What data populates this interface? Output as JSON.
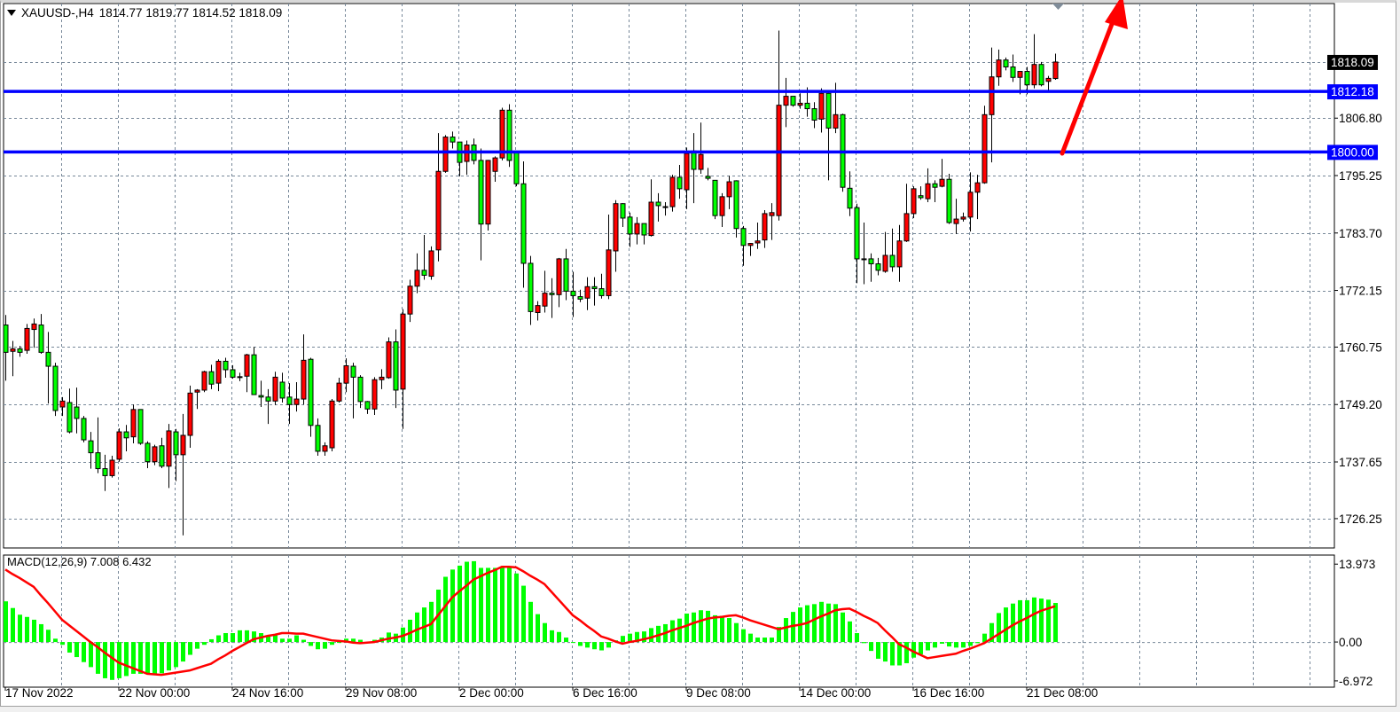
{
  "header": {
    "symbol": "XAUUSD-,H4",
    "ohlc_readout": "1814.77 1819.77 1814.52 1818.09",
    "menu_icon": "triangle-down-icon"
  },
  "colors": {
    "bull_candle": "#ff0000",
    "bear_candle": "#00ff00",
    "level_line": "#0000ff",
    "bid_label_bg": "#000000",
    "macd_histogram": "#00ff00",
    "macd_signal": "#ff0000",
    "arrow": "#ff0000",
    "grid": "#778899"
  },
  "chart_data": {
    "type": "candlestick",
    "symbol": "XAUUSD-",
    "timeframe": "H4",
    "grid": true,
    "ylim": [
      1720.35,
      1829.85
    ],
    "y_tick_labels": [
      "1806.80",
      "1795.25",
      "1783.70",
      "1772.15",
      "1760.75",
      "1749.20",
      "1737.65",
      "1726.25"
    ],
    "x_tick_labels": [
      "17 Nov 2022",
      "22 Nov 00:00",
      "24 Nov 16:00",
      "29 Nov 08:00",
      "2 Dec 00:00",
      "6 Dec 16:00",
      "9 Dec 08:00",
      "14 Dec 00:00",
      "16 Dec 16:00",
      "21 Dec 08:00"
    ],
    "bid": {
      "price": 1818.09,
      "label": "1818.09"
    },
    "horizontal_lines": [
      {
        "price": 1812.18,
        "label": "1812.18"
      },
      {
        "price": 1800.0,
        "label": "1800.00"
      }
    ],
    "annotation": {
      "type": "arrow",
      "direction": "up",
      "color": "#ff0000"
    },
    "candles_ohlc": [
      [
        1765.2,
        1767.2,
        1754.0,
        1759.7
      ],
      [
        1759.9,
        1762.0,
        1754.9,
        1760.4
      ],
      [
        1760.4,
        1761.0,
        1758.8,
        1759.7
      ],
      [
        1760.1,
        1765.4,
        1759.4,
        1764.5
      ],
      [
        1764.3,
        1766.5,
        1760.6,
        1765.4
      ],
      [
        1765.2,
        1767.4,
        1759.4,
        1759.7
      ],
      [
        1759.7,
        1763.8,
        1749.4,
        1756.9
      ],
      [
        1756.9,
        1757.6,
        1746.9,
        1748.0
      ],
      [
        1748.7,
        1750.7,
        1746.9,
        1749.9
      ],
      [
        1749.6,
        1752.4,
        1743.4,
        1743.7
      ],
      [
        1748.7,
        1752.6,
        1743.4,
        1746.4
      ],
      [
        1746.4,
        1746.9,
        1741.6,
        1742.1
      ],
      [
        1741.9,
        1743.7,
        1736.3,
        1739.5
      ],
      [
        1739.5,
        1746.6,
        1735.4,
        1736.3
      ],
      [
        1736.3,
        1739.1,
        1731.8,
        1734.9
      ],
      [
        1734.9,
        1738.9,
        1734.5,
        1738.0
      ],
      [
        1738.2,
        1744.4,
        1737.7,
        1743.7
      ],
      [
        1743.7,
        1745.1,
        1739.8,
        1742.5
      ],
      [
        1742.7,
        1749.2,
        1741.4,
        1748.2
      ],
      [
        1748.2,
        1748.2,
        1741.1,
        1741.4
      ],
      [
        1741.4,
        1741.8,
        1736.4,
        1737.7
      ],
      [
        1737.7,
        1741.1,
        1737.0,
        1740.7
      ],
      [
        1740.9,
        1742.5,
        1736.4,
        1736.8
      ],
      [
        1736.8,
        1745.3,
        1732.4,
        1743.9
      ],
      [
        1743.7,
        1744.3,
        1733.8,
        1739.1
      ],
      [
        1739.1,
        1747.3,
        1722.9,
        1743.0
      ],
      [
        1743.0,
        1753.0,
        1740.5,
        1751.5
      ],
      [
        1751.7,
        1752.3,
        1748.3,
        1752.1
      ],
      [
        1752.1,
        1756.0,
        1751.7,
        1755.8
      ],
      [
        1755.8,
        1757.2,
        1752.3,
        1753.3
      ],
      [
        1753.5,
        1758.3,
        1751.9,
        1757.9
      ],
      [
        1757.9,
        1758.6,
        1754.6,
        1756.2
      ],
      [
        1756.2,
        1757.1,
        1754.4,
        1754.7
      ],
      [
        1754.7,
        1755.6,
        1753.9,
        1754.8
      ],
      [
        1754.9,
        1759.4,
        1751.7,
        1759.2
      ],
      [
        1759.2,
        1760.8,
        1751.2,
        1751.2
      ],
      [
        1751.0,
        1754.0,
        1748.7,
        1750.7
      ],
      [
        1750.7,
        1752.3,
        1745.3,
        1749.9
      ],
      [
        1749.9,
        1755.8,
        1749.1,
        1754.7
      ],
      [
        1753.7,
        1755.6,
        1749.6,
        1750.5
      ],
      [
        1750.7,
        1753.5,
        1745.3,
        1749.2
      ],
      [
        1749.2,
        1753.7,
        1747.8,
        1750.3
      ],
      [
        1750.3,
        1763.3,
        1749.2,
        1758.1
      ],
      [
        1758.3,
        1758.6,
        1742.7,
        1745.0
      ],
      [
        1745.0,
        1746.4,
        1738.9,
        1739.8
      ],
      [
        1739.8,
        1741.6,
        1738.9,
        1740.9
      ],
      [
        1740.5,
        1750.3,
        1739.8,
        1749.9
      ],
      [
        1749.9,
        1754.6,
        1749.6,
        1753.5
      ],
      [
        1753.5,
        1758.5,
        1751.7,
        1757.0
      ],
      [
        1756.9,
        1757.6,
        1746.4,
        1754.7
      ],
      [
        1754.7,
        1755.1,
        1748.5,
        1749.8
      ],
      [
        1749.8,
        1749.9,
        1747.3,
        1748.3
      ],
      [
        1748.3,
        1754.7,
        1747.1,
        1754.2
      ],
      [
        1754.2,
        1756.3,
        1752.3,
        1754.7
      ],
      [
        1754.6,
        1762.7,
        1754.4,
        1761.8
      ],
      [
        1761.8,
        1764.3,
        1748.5,
        1752.1
      ],
      [
        1752.3,
        1768.4,
        1744.3,
        1767.4
      ],
      [
        1767.4,
        1774.3,
        1765.8,
        1773.0
      ],
      [
        1773.0,
        1779.6,
        1771.6,
        1776.2
      ],
      [
        1776.2,
        1783.3,
        1774.3,
        1775.2
      ],
      [
        1775.0,
        1781.0,
        1774.3,
        1780.1
      ],
      [
        1780.3,
        1803.8,
        1778.0,
        1796.1
      ],
      [
        1796.1,
        1803.4,
        1795.8,
        1803.0
      ],
      [
        1803.0,
        1804.1,
        1800.7,
        1802.0
      ],
      [
        1802.0,
        1802.0,
        1795.1,
        1797.9
      ],
      [
        1798.1,
        1802.3,
        1795.4,
        1801.4
      ],
      [
        1801.4,
        1802.7,
        1797.5,
        1798.3
      ],
      [
        1798.3,
        1800.7,
        1778.2,
        1785.5
      ],
      [
        1785.5,
        1798.4,
        1784.2,
        1798.3
      ],
      [
        1796.1,
        1799.1,
        1794.0,
        1798.8
      ],
      [
        1798.8,
        1808.9,
        1798.3,
        1808.4
      ],
      [
        1808.4,
        1809.6,
        1797.0,
        1798.3
      ],
      [
        1799.9,
        1799.9,
        1793.1,
        1793.6
      ],
      [
        1793.6,
        1798.1,
        1772.7,
        1777.6
      ],
      [
        1777.6,
        1779.1,
        1765.2,
        1767.9
      ],
      [
        1767.7,
        1770.0,
        1766.1,
        1769.1
      ],
      [
        1769.0,
        1776.1,
        1767.7,
        1771.6
      ],
      [
        1771.6,
        1774.6,
        1766.6,
        1771.3
      ],
      [
        1771.3,
        1778.7,
        1768.8,
        1778.5
      ],
      [
        1778.5,
        1780.5,
        1770.2,
        1772.0
      ],
      [
        1772.0,
        1775.9,
        1766.8,
        1771.1
      ],
      [
        1770.9,
        1772.3,
        1769.8,
        1770.4
      ],
      [
        1770.6,
        1774.8,
        1768.2,
        1772.9
      ],
      [
        1772.9,
        1774.8,
        1769.1,
        1772.5
      ],
      [
        1772.5,
        1775.5,
        1770.5,
        1771.1
      ],
      [
        1771.1,
        1787.4,
        1770.4,
        1780.3
      ],
      [
        1780.1,
        1790.3,
        1775.9,
        1789.6
      ],
      [
        1789.6,
        1789.7,
        1784.9,
        1786.7
      ],
      [
        1786.9,
        1787.8,
        1780.9,
        1783.5
      ],
      [
        1783.5,
        1786.9,
        1781.4,
        1785.6
      ],
      [
        1785.6,
        1785.6,
        1781.4,
        1783.3
      ],
      [
        1783.2,
        1794.5,
        1783.0,
        1789.9
      ],
      [
        1789.9,
        1791.7,
        1786.0,
        1789.2
      ],
      [
        1789.0,
        1789.9,
        1787.2,
        1789.0
      ],
      [
        1789.0,
        1795.4,
        1788.0,
        1794.9
      ],
      [
        1794.9,
        1797.4,
        1790.6,
        1792.6
      ],
      [
        1792.4,
        1800.9,
        1788.5,
        1799.7
      ],
      [
        1800.2,
        1803.8,
        1789.7,
        1796.5
      ],
      [
        1796.5,
        1805.9,
        1795.6,
        1799.5
      ],
      [
        1795.1,
        1796.8,
        1794.3,
        1794.7
      ],
      [
        1794.3,
        1794.3,
        1786.5,
        1787.2
      ],
      [
        1787.2,
        1791.7,
        1784.9,
        1791.0
      ],
      [
        1791.0,
        1795.2,
        1788.5,
        1794.0
      ],
      [
        1794.2,
        1794.3,
        1782.8,
        1784.6
      ],
      [
        1784.6,
        1785.1,
        1777.1,
        1781.2
      ],
      [
        1781.2,
        1781.7,
        1779.1,
        1781.6
      ],
      [
        1781.7,
        1785.8,
        1780.5,
        1782.1
      ],
      [
        1782.3,
        1788.3,
        1780.7,
        1787.6
      ],
      [
        1787.2,
        1789.7,
        1782.3,
        1787.8
      ],
      [
        1787.2,
        1824.4,
        1786.2,
        1809.4
      ],
      [
        1809.4,
        1814.9,
        1805.0,
        1811.2
      ],
      [
        1811.2,
        1811.2,
        1809.1,
        1809.4
      ],
      [
        1809.4,
        1811.8,
        1808.7,
        1809.8
      ],
      [
        1809.8,
        1813.0,
        1807.1,
        1808.7
      ],
      [
        1808.7,
        1810.0,
        1804.8,
        1806.4
      ],
      [
        1806.6,
        1812.8,
        1803.9,
        1811.8
      ],
      [
        1811.8,
        1811.9,
        1794.3,
        1804.8
      ],
      [
        1804.8,
        1813.9,
        1803.8,
        1807.5
      ],
      [
        1807.5,
        1807.7,
        1792.0,
        1792.9
      ],
      [
        1792.7,
        1796.1,
        1787.1,
        1788.7
      ],
      [
        1788.8,
        1789.6,
        1773.6,
        1778.5
      ],
      [
        1778.5,
        1785.8,
        1773.4,
        1778.5
      ],
      [
        1778.5,
        1779.6,
        1773.9,
        1777.5
      ],
      [
        1777.5,
        1778.7,
        1775.2,
        1776.2
      ],
      [
        1776.0,
        1783.9,
        1775.7,
        1779.2
      ],
      [
        1779.2,
        1784.6,
        1775.9,
        1776.9
      ],
      [
        1776.9,
        1785.3,
        1773.9,
        1782.1
      ],
      [
        1782.1,
        1793.6,
        1781.9,
        1787.6
      ],
      [
        1787.6,
        1793.1,
        1786.7,
        1792.6
      ],
      [
        1791.2,
        1793.1,
        1790.4,
        1790.8
      ],
      [
        1790.6,
        1796.7,
        1789.9,
        1793.6
      ],
      [
        1793.6,
        1794.3,
        1789.9,
        1792.9
      ],
      [
        1793.1,
        1798.6,
        1792.9,
        1794.5
      ],
      [
        1794.5,
        1795.6,
        1785.5,
        1785.8
      ],
      [
        1785.6,
        1790.6,
        1783.5,
        1786.5
      ],
      [
        1786.5,
        1787.8,
        1786.0,
        1786.9
      ],
      [
        1786.9,
        1795.9,
        1784.0,
        1791.9
      ],
      [
        1791.9,
        1795.4,
        1786.5,
        1793.8
      ],
      [
        1793.8,
        1809.3,
        1793.6,
        1807.5
      ],
      [
        1807.5,
        1821.0,
        1797.9,
        1815.1
      ],
      [
        1815.1,
        1820.6,
        1813.3,
        1818.5
      ],
      [
        1818.5,
        1819.0,
        1816.4,
        1817.1
      ],
      [
        1817.1,
        1819.6,
        1814.1,
        1815.0
      ],
      [
        1815.0,
        1816.2,
        1811.6,
        1816.2
      ],
      [
        1816.2,
        1817.1,
        1811.6,
        1813.5
      ],
      [
        1813.5,
        1823.7,
        1812.8,
        1817.6
      ],
      [
        1817.6,
        1818.1,
        1813.2,
        1813.5
      ],
      [
        1814.2,
        1815.3,
        1812.3,
        1814.8
      ],
      [
        1814.77,
        1819.77,
        1814.52,
        1818.09
      ]
    ],
    "macd": {
      "label": "MACD(12,26,9) 7.008 6.432",
      "ylim": [
        -8.1,
        15.6
      ],
      "y_tick_labels": [
        "13.973",
        "0.00",
        "-6.972"
      ],
      "main": [
        7.3,
        6.1,
        4.9,
        4.5,
        4.0,
        3.2,
        2.2,
        0.6,
        -0.5,
        -1.9,
        -2.7,
        -3.6,
        -4.5,
        -5.7,
        -6.5,
        -6.8,
        -6.5,
        -6.1,
        -5.7,
        -5.7,
        -5.7,
        -5.7,
        -5.6,
        -5.1,
        -4.5,
        -3.5,
        -2.3,
        -1.2,
        -0.5,
        0.5,
        1.2,
        1.6,
        1.6,
        2.1,
        2.1,
        1.9,
        1.6,
        1.1,
        1.2,
        0.6,
        0.6,
        1.2,
        0.4,
        -0.7,
        -1.3,
        -1.2,
        -0.5,
        0,
        0.6,
        0.6,
        0.4,
        0,
        0.4,
        0.8,
        1.7,
        1.5,
        2.6,
        4.0,
        5.3,
        6.2,
        7.2,
        9.4,
        11.7,
        13.0,
        13.7,
        14.4,
        14.5,
        13.3,
        13.3,
        13.3,
        13.3,
        13.3,
        12.3,
        10.1,
        7.2,
        5.0,
        3.4,
        2.1,
        1.8,
        0.8,
        0,
        -0.7,
        -1.0,
        -1.3,
        -1.5,
        -1.0,
        0.3,
        1.1,
        1.5,
        1.8,
        1.9,
        2.5,
        2.9,
        3.2,
        3.9,
        4.2,
        5.1,
        5.3,
        5.7,
        5.6,
        4.8,
        4.7,
        4.3,
        3.4,
        2.3,
        1.5,
        0.8,
        0.8,
        0.8,
        2.7,
        4.3,
        5.4,
        6.2,
        6.6,
        6.8,
        7.2,
        6.9,
        6.8,
        5.3,
        3.7,
        1.6,
        -0.2,
        -1.6,
        -3.0,
        -3.5,
        -4.2,
        -4.2,
        -3.8,
        -2.8,
        -2.2,
        -1.5,
        -1.0,
        -0.3,
        -0.8,
        -1.0,
        -1.0,
        -0.7,
        -0.2,
        1.5,
        3.4,
        5.2,
        6.2,
        6.9,
        7.5,
        7.5,
        8.0,
        7.8,
        7.6,
        7.008
      ],
      "signal": [
        13.0,
        12.2,
        11.5,
        10.7,
        9.9,
        8.4,
        7.0,
        5.5,
        4.0,
        3.0,
        2.0,
        1.0,
        0,
        -0.9,
        -1.9,
        -2.8,
        -3.7,
        -4.2,
        -4.7,
        -5.2,
        -5.7,
        -5.8,
        -5.9,
        -5.7,
        -5.5,
        -5.3,
        -5.1,
        -4.7,
        -4.3,
        -3.9,
        -3.1,
        -2.4,
        -1.6,
        -0.9,
        -0.2,
        0.5,
        0.8,
        1.1,
        1.3,
        1.6,
        1.6,
        1.5,
        1.5,
        1.2,
        0.9,
        0.6,
        0.3,
        0.2,
        0.1,
        -0.1,
        -0.2,
        -0.1,
        0,
        0.3,
        0.6,
        0.8,
        1.1,
        1.6,
        2.2,
        2.7,
        3.2,
        4.8,
        6.4,
        8.0,
        9.1,
        10.1,
        11.2,
        11.8,
        12.4,
        12.9,
        13.5,
        13.5,
        13.4,
        12.7,
        11.9,
        11.2,
        10.4,
        9.0,
        7.6,
        6.2,
        4.8,
        3.9,
        2.9,
        2.0,
        1.0,
        0.6,
        0.1,
        -0.3,
        0.0,
        0.2,
        0.5,
        0.8,
        1.2,
        1.6,
        2.1,
        2.5,
        2.9,
        3.4,
        3.8,
        4.2,
        4.4,
        4.5,
        4.7,
        4.8,
        4.4,
        3.9,
        3.5,
        3.1,
        2.7,
        2.3,
        2.6,
        2.9,
        3.1,
        3.4,
        4.0,
        4.6,
        5.1,
        5.7,
        5.9,
        6.0,
        5.4,
        4.7,
        4.1,
        3.4,
        2.1,
        0.9,
        -0.4,
        -1.0,
        -1.7,
        -2.3,
        -2.9,
        -2.7,
        -2.5,
        -2.3,
        -2.1,
        -1.6,
        -1.2,
        -0.7,
        -0.2,
        0.6,
        1.4,
        2.2,
        3.0,
        3.7,
        4.3,
        5.0,
        5.6,
        6.0,
        6.432
      ]
    }
  }
}
